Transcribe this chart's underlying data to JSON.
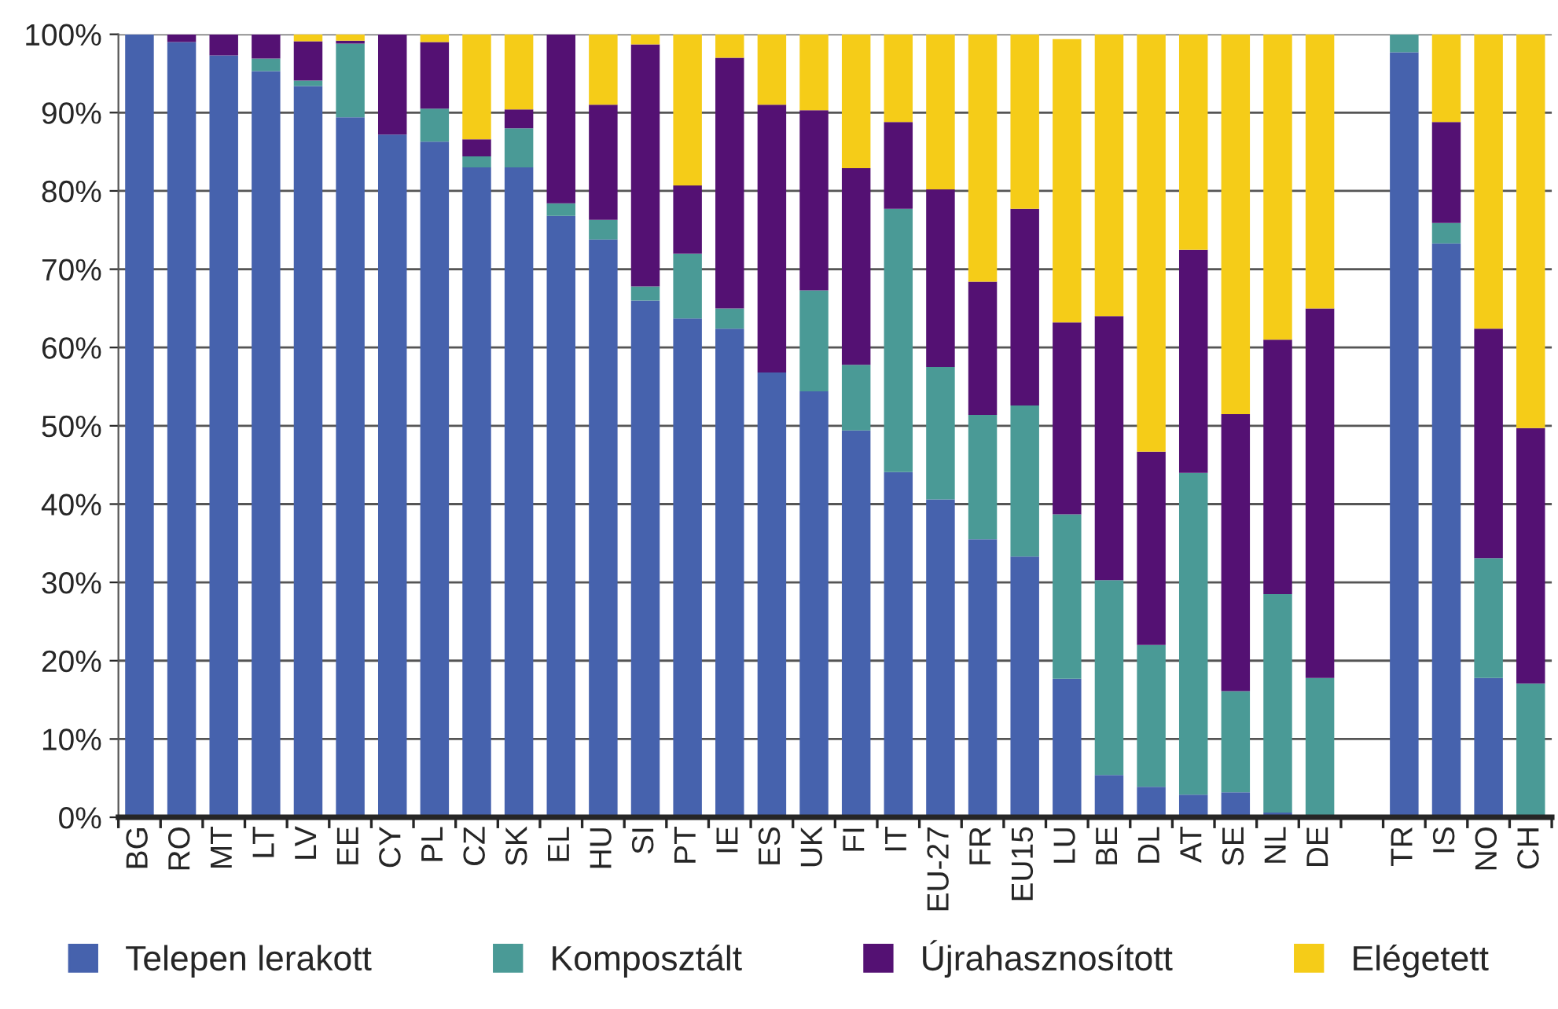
{
  "chart_data": {
    "type": "bar",
    "stacked": true,
    "categories": [
      "BG",
      "RO",
      "MT",
      "LT",
      "LV",
      "EE",
      "CY",
      "PL",
      "CZ",
      "SK",
      "EL",
      "HU",
      "SI",
      "PT",
      "IE",
      "ES",
      "UK",
      "FI",
      "IT",
      "EU-27",
      "FR",
      "EU15",
      "LU",
      "BE",
      "DL",
      "AT",
      "SE",
      "NL",
      "DE",
      null,
      "TR",
      "IS",
      "NO",
      "CH"
    ],
    "series": [
      {
        "name": "Telepen lerakott",
        "color": "#4662ad",
        "values": [
          100,
          99,
          97.3,
          95.3,
          93.4,
          89.4,
          87.2,
          86.3,
          83,
          83,
          76.8,
          73.8,
          66,
          63.7,
          62.4,
          56.8,
          54.4,
          49.4,
          44.1,
          40.6,
          35.5,
          33.3,
          17.7,
          5.4,
          3.9,
          2.9,
          3.2,
          0.6,
          0.2,
          null,
          97.7,
          73.3,
          17.8,
          0
        ]
      },
      {
        "name": "Komposztált",
        "color": "#4a9a96",
        "values": [
          0,
          0,
          0,
          1.6,
          0.7,
          9.4,
          0,
          4.2,
          1.4,
          5,
          1.6,
          2.5,
          1.8,
          8.3,
          2.6,
          0,
          12.9,
          8.4,
          33.6,
          16.9,
          15.9,
          19.3,
          21,
          24.9,
          18.1,
          41.1,
          12.9,
          27.9,
          17.6,
          null,
          2.3,
          2.6,
          15.3,
          17.1
        ]
      },
      {
        "name": "Újrahasznosított",
        "color": "#541173",
        "values": [
          0,
          1,
          2.7,
          3.1,
          5,
          0.4,
          12.8,
          8.5,
          2.2,
          2.4,
          21.6,
          14.7,
          30.9,
          8.7,
          32,
          34.2,
          23,
          25.1,
          11.1,
          22.7,
          17,
          25.1,
          24.5,
          33.7,
          24.7,
          28.5,
          35.4,
          32.5,
          47.2,
          null,
          0,
          12.9,
          29.3,
          32.6
        ]
      },
      {
        "name": "Elégetett",
        "color": "#f5cc18",
        "values": [
          0,
          0,
          0,
          0,
          0.9,
          0.8,
          0,
          1,
          13.4,
          9.6,
          0,
          9,
          1.3,
          19.3,
          3,
          9,
          9.7,
          17.1,
          11.2,
          19.8,
          31.6,
          22.3,
          36.2,
          36,
          53.3,
          27.5,
          48.5,
          39,
          35,
          null,
          0,
          11.2,
          37.6,
          50.3
        ]
      }
    ],
    "ylim": [
      0,
      100
    ],
    "yticks": [
      {
        "value": 0,
        "label": "0%"
      },
      {
        "value": 10,
        "label": "10%"
      },
      {
        "value": 20,
        "label": "20%"
      },
      {
        "value": 30,
        "label": "30%"
      },
      {
        "value": 40,
        "label": "40%"
      },
      {
        "value": 50,
        "label": "50%"
      },
      {
        "value": 60,
        "label": "60%"
      },
      {
        "value": 70,
        "label": "70%"
      },
      {
        "value": 80,
        "label": "80%"
      },
      {
        "value": 90,
        "label": "90%"
      },
      {
        "value": 100,
        "label": "100%"
      }
    ],
    "grid": "y",
    "legend": "bottom"
  }
}
